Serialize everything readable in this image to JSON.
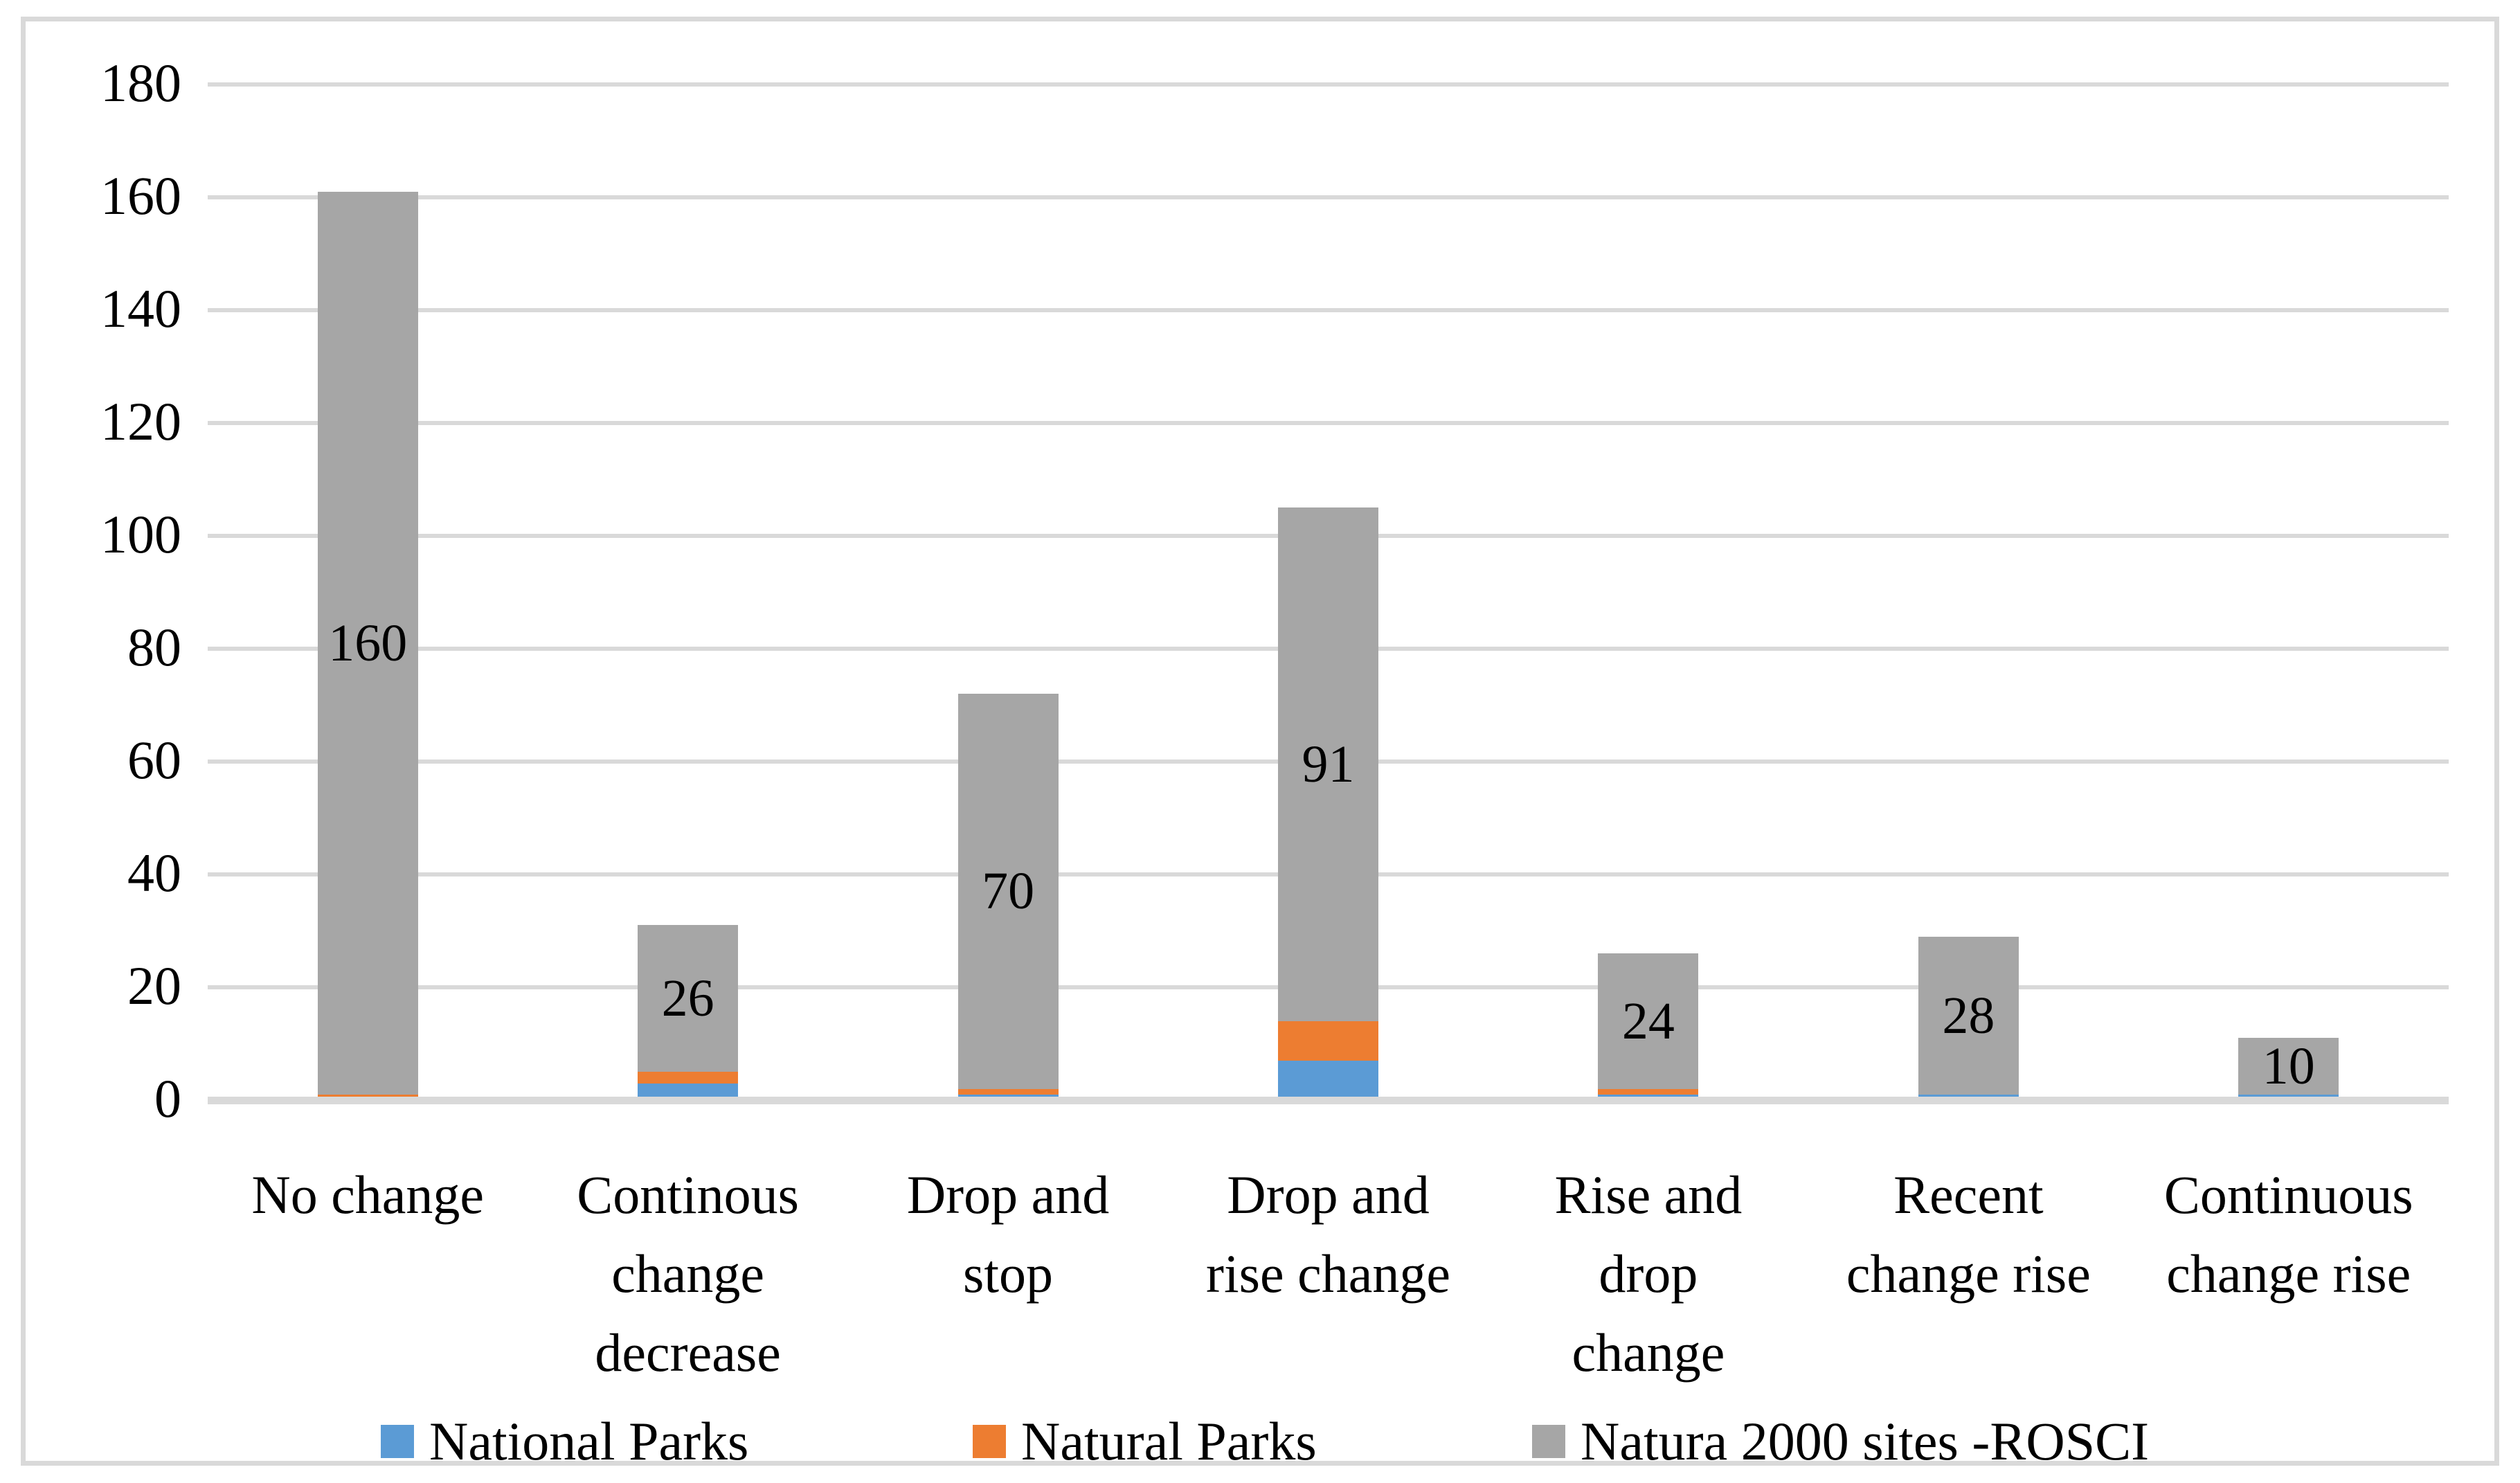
{
  "chart_data": {
    "type": "bar",
    "stacked": true,
    "title": "",
    "xlabel": "",
    "ylabel": "",
    "categories": [
      "No change",
      "Continous change decrease",
      "Drop and stop",
      "Drop and rise change",
      "Rise and drop change",
      "Recent change rise",
      "Continuous change rise"
    ],
    "category_display_lines": [
      [
        "No change"
      ],
      [
        "Continous",
        "change",
        "decrease"
      ],
      [
        "Drop and",
        "stop"
      ],
      [
        "Drop and",
        "rise change"
      ],
      [
        "Rise and",
        "drop",
        "change"
      ],
      [
        "Recent",
        "change rise"
      ],
      [
        "Continuous",
        "change rise"
      ]
    ],
    "series": [
      {
        "name": "National Parks",
        "color": "#5B9BD5",
        "values": [
          0,
          3,
          1,
          7,
          1,
          1,
          1
        ]
      },
      {
        "name": "Natural Parks",
        "color": "#ED7D31",
        "values": [
          1,
          2,
          1,
          7,
          1,
          0,
          0
        ]
      },
      {
        "name": "Natura 2000 sites -ROSCI",
        "color": "#A6A6A6",
        "values": [
          160,
          26,
          70,
          91,
          24,
          28,
          10
        ]
      }
    ],
    "stack_totals": [
      161,
      31,
      72,
      105,
      26,
      29,
      11
    ],
    "data_labels": {
      "labeled_series": "Natura 2000 sites -ROSCI",
      "values": [
        "160",
        "26",
        "70",
        "91",
        "24",
        "28",
        "10"
      ]
    },
    "y_axis": {
      "min": 0,
      "max": 180,
      "step": 20,
      "tick_labels": [
        "0",
        "20",
        "40",
        "60",
        "80",
        "100",
        "120",
        "140",
        "160",
        "180"
      ]
    },
    "legend_position": "bottom",
    "grid": true,
    "colors": {
      "gridline": "#D9D9D9",
      "axis_line": "#D9D9D9",
      "frame_border": "#D9D9D9",
      "plot_background": "#FFFFFF",
      "label_text": "#000000"
    }
  }
}
